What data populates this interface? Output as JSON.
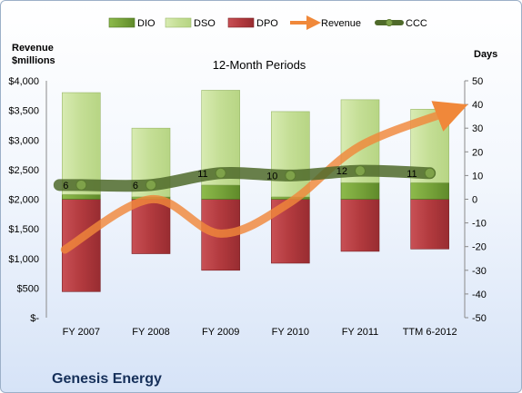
{
  "chart_data": {
    "type": "bar",
    "title": "12-Month Periods",
    "left_axis_label_line1": "Revenue",
    "left_axis_label_line2": "$millions",
    "right_axis_label": "Days",
    "company": "Genesis Energy",
    "categories": [
      "FY 2007",
      "FY 2008",
      "FY 2009",
      "FY 2010",
      "FY 2011",
      "TTM 6-2012"
    ],
    "left_ylim": [
      0,
      4000
    ],
    "left_ticks": [
      "$-",
      "$500",
      "$1,000",
      "$1,500",
      "$2,000",
      "$2,500",
      "$3,000",
      "$3,500",
      "$4,000"
    ],
    "right_ylim": [
      -50,
      50
    ],
    "right_ticks": [
      "-50",
      "-40",
      "-30",
      "-20",
      "-10",
      "0",
      "10",
      "20",
      "30",
      "40",
      "50"
    ],
    "legend_position": "top",
    "legend": [
      "DIO",
      "DSO",
      "DPO",
      "Revenue",
      "CCC"
    ],
    "series": [
      {
        "name": "DIO",
        "axis": "right",
        "values": [
          2,
          1,
          6,
          1,
          7,
          7
        ]
      },
      {
        "name": "DSO",
        "axis": "right",
        "values": [
          43,
          29,
          40,
          36,
          35,
          31
        ]
      },
      {
        "name": "DPO",
        "axis": "right",
        "values": [
          -39,
          -23,
          -30,
          -27,
          -22,
          -21
        ]
      },
      {
        "name": "Revenue",
        "axis": "left",
        "values": [
          1150,
          2000,
          1420,
          1950,
          2900,
          3500
        ]
      },
      {
        "name": "CCC",
        "axis": "right",
        "values": [
          6,
          6,
          11,
          10,
          12,
          11
        ]
      }
    ],
    "ccc_labels": [
      "6",
      "6",
      "11",
      "10",
      "12",
      "11"
    ],
    "colors": {
      "DIO": "#77a33a",
      "DSO": "#cde3a4",
      "DPO": "#b23a3e",
      "Revenue": "#f0883a",
      "CCC": "#4f6a2a"
    }
  }
}
